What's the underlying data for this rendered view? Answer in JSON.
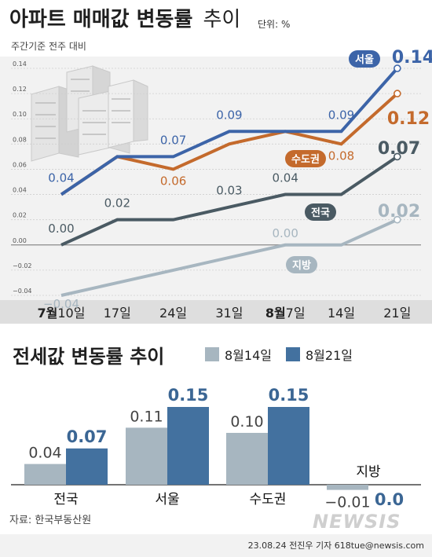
{
  "header": {
    "title_bold": "아파트 매매값 변동률",
    "title_rest": "추이",
    "unit": "단위: %",
    "basis": "주간기준 전주 대비"
  },
  "chart_data": [
    {
      "type": "line",
      "title": "아파트 매매값 변동률 추이",
      "subtitle": "주간기준 전주 대비",
      "unit": "%",
      "ylim": [
        -0.04,
        0.14
      ],
      "yticks": [
        "0.14",
        "0.12",
        "0.10",
        "0.08",
        "0.06",
        "0.04",
        "0.02",
        "0.00",
        "−0.02",
        "−0.04"
      ],
      "xtick_labels": [
        {
          "month": "7월",
          "day": "10일"
        },
        {
          "month": "",
          "day": "17일"
        },
        {
          "month": "",
          "day": "24일"
        },
        {
          "month": "",
          "day": "31일"
        },
        {
          "month": "8월",
          "day": "7일"
        },
        {
          "month": "",
          "day": "14일"
        },
        {
          "month": "",
          "day": "21일"
        }
      ],
      "series": [
        {
          "name": "서울",
          "color": "#3c64a8",
          "values": [
            0.04,
            0.07,
            0.07,
            0.09,
            0.09,
            0.09,
            0.14
          ],
          "point_labels": [
            "0.04",
            "",
            "0.07",
            "0.09",
            "",
            "0.09",
            "0.14"
          ]
        },
        {
          "name": "수도권",
          "color": "#c46a2c",
          "values": [
            0.04,
            0.07,
            0.06,
            0.08,
            0.09,
            0.08,
            0.12
          ],
          "point_labels": [
            "",
            "",
            "0.06",
            "",
            "",
            "0.08",
            "0.12"
          ]
        },
        {
          "name": "전국",
          "color": "#4a5a63",
          "values": [
            0.0,
            0.02,
            0.02,
            0.03,
            0.04,
            0.04,
            0.07
          ],
          "point_labels": [
            "0.00",
            "0.02",
            "",
            "0.03",
            "0.04",
            "",
            "0.07"
          ]
        },
        {
          "name": "지방",
          "color": "#a7b6c0",
          "values": [
            -0.04,
            -0.03,
            -0.02,
            -0.01,
            0.0,
            0.0,
            0.02
          ],
          "point_labels": [
            "−0.04",
            "",
            "",
            "",
            "0.00",
            "",
            "0.02"
          ]
        }
      ]
    },
    {
      "type": "bar",
      "title": "전세값 변동률 추이",
      "categories": [
        "전국",
        "서울",
        "수도권",
        "지방"
      ],
      "ylim": [
        -0.02,
        0.17
      ],
      "series": [
        {
          "name": "8월14일",
          "color": "#a7b6c0",
          "values": [
            0.04,
            0.11,
            0.1,
            -0.01
          ],
          "labels": [
            "0.04",
            "0.11",
            "0.10",
            "−0.01"
          ]
        },
        {
          "name": "8월21일",
          "color": "#43719f",
          "values": [
            0.07,
            0.15,
            0.15,
            0.0
          ],
          "labels": [
            "0.07",
            "0.15",
            "0.15",
            "0.0"
          ]
        }
      ]
    }
  ],
  "footer": {
    "source": "자료: 한국부동산원",
    "credit": "23.08.24 전진우 기자 618tue@newsis.com",
    "watermark": "NEWSIS"
  }
}
